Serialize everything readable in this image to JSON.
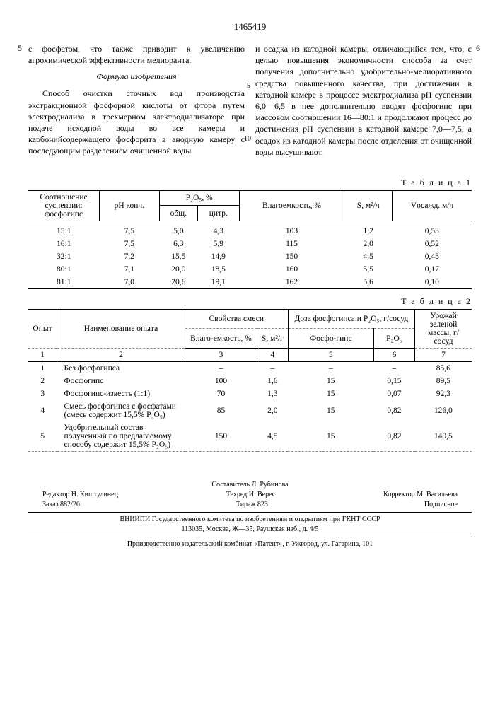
{
  "doc_number": "1465419",
  "left_col_num": "5",
  "right_col_num": "6",
  "left_para1": "с фосфатом, что также приводит к увеличению агрохимической эффективности мелиоранта.",
  "formula_title": "Формула изобретения",
  "left_para2": "Способ очистки сточных вод производства экстракционной фосфорной кислоты от фтора путем электродиализа в трехмерном электродиализаторе при подаче исходной воды во все камеры и карбонийсодержащего фосфорита в анодную камеру с последующим разделением очищенной воды",
  "line_5": "5",
  "line_10": "10",
  "right_para1": "и осадка из катодной камеры, отличающийся тем, что, с целью повышения экономичности способа за счет получения дополнительно удобрительно-мелиоративного средства повышенного качества, при достижении в катодной камере в процессе электродиализа pH суспензии 6,0—6,5 в нее дополнительно вводят фосфогипс при массовом соотношении 16—80:1 и продолжают процесс до достижения pH суспензии в катодной камере 7,0—7,5, а осадок из катодной камеры после отделения от очищенной воды высушивают.",
  "table1_label": "Т а б л и ц а  1",
  "t1": {
    "h_ratio": "Соотношение суспензии: фосфогипс",
    "h_ph": "pH конч.",
    "h_p2o5": "P₂O₅, %",
    "h_p2o5_total": "общ.",
    "h_p2o5_citr": "цитр.",
    "h_vlago": "Влагоемкость, %",
    "h_s": "S, м²/ч",
    "h_v": "Vосажд. м/ч",
    "rows": [
      {
        "r": "15:1",
        "ph": "7,5",
        "p1": "5,0",
        "p2": "4,3",
        "v": "103",
        "s": "1,2",
        "vo": "0,53"
      },
      {
        "r": "16:1",
        "ph": "7,5",
        "p1": "6,3",
        "p2": "5,9",
        "v": "115",
        "s": "2,0",
        "vo": "0,52"
      },
      {
        "r": "32:1",
        "ph": "7,2",
        "p1": "15,5",
        "p2": "14,9",
        "v": "150",
        "s": "4,5",
        "vo": "0,48"
      },
      {
        "r": "80:1",
        "ph": "7,1",
        "p1": "20,0",
        "p2": "18,5",
        "v": "160",
        "s": "5,5",
        "vo": "0,17"
      },
      {
        "r": "81:1",
        "ph": "7,0",
        "p1": "20,6",
        "p2": "19,1",
        "v": "162",
        "s": "5,6",
        "vo": "0,10"
      }
    ]
  },
  "table2_label": "Т а б л и ц а  2",
  "t2": {
    "h_num": "Опыт",
    "h_name": "Наименование опыта",
    "h_props": "Свойства смеси",
    "h_vlago": "Влаго-емкость, %",
    "h_s": "S, м²/г",
    "h_dose": "Доза фосфогипса и P₂O₅, г/сосуд",
    "h_fg": "Фосфо-гипс",
    "h_p2o5": "P₂O₅",
    "h_yield": "Урожай зеленой массы, г/сосуд",
    "c1": "1",
    "c2": "2",
    "c3": "3",
    "c4": "4",
    "c5": "5",
    "c6": "6",
    "c7": "7",
    "rows": [
      {
        "n": "1",
        "name": "Без фосфогипса",
        "v": "–",
        "s": "–",
        "fg": "–",
        "p": "–",
        "y": "85,6"
      },
      {
        "n": "2",
        "name": "Фосфогипс",
        "v": "100",
        "s": "1,6",
        "fg": "15",
        "p": "0,15",
        "y": "89,5"
      },
      {
        "n": "3",
        "name": "Фосфогипс-известь (1:1)",
        "v": "70",
        "s": "1,3",
        "fg": "15",
        "p": "0,07",
        "y": "92,3"
      },
      {
        "n": "4",
        "name": "Смесь фосфогипса с фосфатами (смесь содержит 15,5% P₂O₅)",
        "v": "85",
        "s": "2,0",
        "fg": "15",
        "p": "0,82",
        "y": "126,0"
      },
      {
        "n": "5",
        "name": "Удобрительный состав полученный по предлагаемому способу содержит 15,5% P₂O₅)",
        "v": "150",
        "s": "4,5",
        "fg": "15",
        "p": "0,82",
        "y": "140,5"
      }
    ]
  },
  "footer": {
    "compiler": "Составитель Л. Рубинова",
    "editor": "Редактор Н. Киштулинец",
    "techred": "Техред И. Верес",
    "corrector": "Корректор М. Васильева",
    "order": "Заказ 882/26",
    "tirage": "Тираж 823",
    "subscr": "Подписное",
    "org": "ВНИИПИ Государственного комитета по изобретениям и открытиям при ГКНТ СССР",
    "addr": "113035, Москва, Ж—35, Раушская наб., д. 4/5",
    "print": "Производственно-издательский комбинат «Патент», г. Ужгород, ул. Гагарина, 101"
  }
}
